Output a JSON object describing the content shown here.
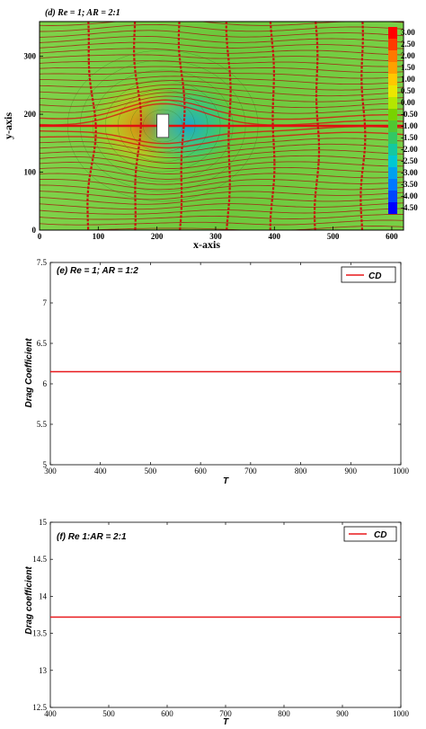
{
  "chart_data": [
    {
      "type": "heatmap",
      "title": "(d) Re = 1; AR = 2:1",
      "xlabel": "x-axis",
      "ylabel": "y-axis",
      "xlim": [
        0,
        620
      ],
      "ylim": [
        0,
        360
      ],
      "xticks": [
        "0",
        "100",
        "200",
        "300",
        "400",
        "500",
        "600"
      ],
      "yticks": [
        "0",
        "100",
        "200",
        "300"
      ],
      "colorbar": {
        "labels": [
          "3.00",
          "2.50",
          "2.00",
          "1.50",
          "1.00",
          "0.50",
          "0.00",
          "-0.50",
          "-1.00",
          "-1.50",
          "-2.00",
          "-2.50",
          "-3.00",
          "-3.50",
          "-4.00",
          "-4.50"
        ],
        "colors": [
          "#ff0000",
          "#ff3a00",
          "#ff7700",
          "#ffa000",
          "#ffc800",
          "#ebe600",
          "#b4e600",
          "#78d200",
          "#50c832",
          "#32c864",
          "#14c8a0",
          "#00c8d2",
          "#00a0f0",
          "#0078ff",
          "#0046ff",
          "#0000ff"
        ]
      },
      "obstacle": {
        "x": [
          200,
          220
        ],
        "y": [
          160,
          200
        ]
      }
    },
    {
      "type": "line",
      "title": "(e) Re = 1; AR = 1:2",
      "xlabel": "T",
      "ylabel": "Drag Coefficient",
      "xlim": [
        300,
        1000
      ],
      "ylim": [
        5,
        7.5
      ],
      "xticks": [
        "300",
        "400",
        "500",
        "600",
        "700",
        "800",
        "900",
        "1000"
      ],
      "yticks": [
        "5",
        "5.5",
        "6",
        "6.5",
        "7",
        "7.5"
      ],
      "legend": "top-right",
      "series": [
        {
          "name": "CD",
          "color": "#e8191c",
          "x": [
            300,
            1000
          ],
          "y": [
            6.15,
            6.15
          ]
        }
      ]
    },
    {
      "type": "line",
      "title": "(f) Re 1:AR = 2:1",
      "xlabel": "T",
      "ylabel": "Drag coefficient",
      "xlim": [
        400,
        1000
      ],
      "ylim": [
        12.5,
        15
      ],
      "xticks": [
        "400",
        "500",
        "600",
        "700",
        "800",
        "900",
        "1000"
      ],
      "yticks": [
        "12.5",
        "13",
        "13.5",
        "14",
        "14.5",
        "15"
      ],
      "legend": "top-right",
      "series": [
        {
          "name": "CD",
          "color": "#e8191c",
          "x": [
            400,
            1000
          ],
          "y": [
            13.72,
            13.72
          ]
        }
      ]
    }
  ]
}
